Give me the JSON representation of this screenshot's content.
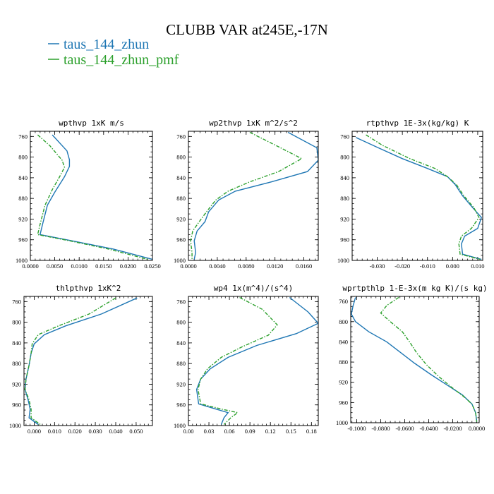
{
  "figure": {
    "title": "CLUBB VAR at245E,-17N",
    "legend": [
      {
        "name": "taus_144_zhun",
        "color": "#1f77b4",
        "dash": "solid"
      },
      {
        "name": "taus_144_zhun_pmf",
        "color": "#2ca02c",
        "dash": "dash-dot"
      }
    ]
  },
  "chart_data": [
    {
      "type": "line",
      "title": "wpthvp  1xK m/s",
      "xlim": [
        0,
        0.025
      ],
      "ylim": [
        1000,
        750
      ],
      "xticks": [
        0,
        0.005,
        0.01,
        0.015,
        0.02,
        0.025
      ],
      "xticklabels": [
        "0.0000",
        "0.0050",
        "0.0100",
        "0.0150",
        "0.0200",
        "0.0250"
      ],
      "yticks": [
        760,
        800,
        840,
        880,
        920,
        960,
        1000
      ],
      "yticklabels": [
        "760",
        "800",
        "840",
        "880",
        "920",
        "960",
        "1000"
      ],
      "series": [
        {
          "name": "taus_144_zhun",
          "color": "#1f77b4",
          "points": [
            [
              0.0045,
              757
            ],
            [
              0.0075,
              788
            ],
            [
              0.008,
              805
            ],
            [
              0.008,
              818
            ],
            [
              0.007,
              838
            ],
            [
              0.005,
              868
            ],
            [
              0.0035,
              893
            ],
            [
              0.0025,
              930
            ],
            [
              0.002,
              950
            ],
            [
              0.0085,
              962
            ],
            [
              0.017,
              978
            ],
            [
              0.025,
              998
            ]
          ]
        },
        {
          "name": "taus_144_zhun_pmf",
          "color": "#2ca02c",
          "points": [
            [
              0.0015,
              757
            ],
            [
              0.004,
              778
            ],
            [
              0.0065,
              806
            ],
            [
              0.007,
              820
            ],
            [
              0.006,
              838
            ],
            [
              0.0045,
              863
            ],
            [
              0.003,
              893
            ],
            [
              0.002,
              930
            ],
            [
              0.0015,
              950
            ],
            [
              0.008,
              962
            ],
            [
              0.016,
              978
            ],
            [
              0.024,
              998
            ]
          ]
        }
      ]
    },
    {
      "type": "line",
      "title": "wp2thvp  1xK m^2/s^2",
      "xlim": [
        0,
        0.018
      ],
      "ylim": [
        1000,
        750
      ],
      "xticks": [
        0,
        0.004,
        0.008,
        0.012,
        0.016
      ],
      "xticklabels": [
        "0.0000",
        "0.0040",
        "0.0080",
        "0.0120",
        "0.0160"
      ],
      "yticks": [
        760,
        800,
        840,
        880,
        920,
        960,
        1000
      ],
      "yticklabels": [
        "760",
        "800",
        "840",
        "880",
        "920",
        "960",
        "1000"
      ],
      "series": [
        {
          "name": "taus_144_zhun",
          "color": "#1f77b4",
          "points": [
            [
              0.0138,
              752
            ],
            [
              0.0178,
              782
            ],
            [
              0.018,
              806
            ],
            [
              0.0165,
              828
            ],
            [
              0.0115,
              848
            ],
            [
              0.0065,
              866
            ],
            [
              0.0042,
              883
            ],
            [
              0.0028,
              906
            ],
            [
              0.0023,
              925
            ],
            [
              0.0012,
              943
            ],
            [
              0.0008,
              962
            ],
            [
              0.001,
              985
            ],
            [
              0.0008,
              998
            ]
          ]
        },
        {
          "name": "taus_144_zhun_pmf",
          "color": "#2ca02c",
          "points": [
            [
              0.0085,
              752
            ],
            [
              0.0125,
              780
            ],
            [
              0.0157,
              803
            ],
            [
              0.0125,
              828
            ],
            [
              0.0085,
              848
            ],
            [
              0.0055,
              866
            ],
            [
              0.0038,
              883
            ],
            [
              0.0025,
              906
            ],
            [
              0.0015,
              925
            ],
            [
              0.0006,
              943
            ],
            [
              0.0003,
              962
            ],
            [
              0.0005,
              985
            ],
            [
              0.0005,
              998
            ]
          ]
        }
      ]
    },
    {
      "type": "line",
      "title": "rtpthvp  1E-3x(kg/kg) K",
      "xlim": [
        -0.04,
        0.012
      ],
      "ylim": [
        1000,
        750
      ],
      "xticks": [
        -0.03,
        -0.02,
        -0.01,
        0,
        0.01
      ],
      "xticklabels": [
        "-0.030",
        "-0.020",
        "-0.010",
        "0.000",
        "0.010"
      ],
      "yticks": [
        760,
        800,
        840,
        880,
        920,
        960,
        1000
      ],
      "yticklabels": [
        "760",
        "800",
        "840",
        "880",
        "920",
        "960",
        "1000"
      ],
      "series": [
        {
          "name": "taus_144_zhun",
          "color": "#1f77b4",
          "points": [
            [
              -0.0385,
              762
            ],
            [
              -0.03,
              781
            ],
            [
              -0.02,
              803
            ],
            [
              -0.01,
              822
            ],
            [
              -0.002,
              838
            ],
            [
              0.001,
              853
            ],
            [
              0.004,
              875
            ],
            [
              0.008,
              898
            ],
            [
              0.0115,
              917
            ],
            [
              0.01,
              938
            ],
            [
              0.0048,
              953
            ],
            [
              0.0035,
              968
            ],
            [
              0.004,
              988
            ],
            [
              0.0115,
              998
            ]
          ]
        },
        {
          "name": "taus_144_zhun_pmf",
          "color": "#2ca02c",
          "points": [
            [
              -0.0345,
              757
            ],
            [
              -0.028,
              777
            ],
            [
              -0.017,
              803
            ],
            [
              -0.007,
              822
            ],
            [
              -0.002,
              838
            ],
            [
              0.0015,
              853
            ],
            [
              0.0045,
              875
            ],
            [
              0.0085,
              898
            ],
            [
              0.0105,
              917
            ],
            [
              0.0075,
              938
            ],
            [
              0.0035,
              953
            ],
            [
              0.0025,
              968
            ],
            [
              0.003,
              988
            ],
            [
              0.011,
              998
            ]
          ]
        }
      ]
    },
    {
      "type": "line",
      "title": "thlpthvp  1xK^2",
      "xlim": [
        -0.005,
        0.058
      ],
      "ylim": [
        1000,
        750
      ],
      "xticks": [
        0,
        0.01,
        0.02,
        0.03,
        0.04,
        0.05
      ],
      "xticklabels": [
        "0.000",
        "0.010",
        "0.020",
        "0.030",
        "0.040",
        "0.050"
      ],
      "yticks": [
        760,
        800,
        840,
        880,
        920,
        960,
        1000
      ],
      "yticklabels": [
        "760",
        "800",
        "840",
        "880",
        "920",
        "960",
        "1000"
      ],
      "series": [
        {
          "name": "taus_144_zhun",
          "color": "#1f77b4",
          "points": [
            [
              0.0505,
              753
            ],
            [
              0.033,
              784
            ],
            [
              0.0155,
              807
            ],
            [
              0.005,
              824
            ],
            [
              0,
              842
            ],
            [
              -0.0015,
              860
            ],
            [
              -0.0025,
              883
            ],
            [
              -0.004,
              910
            ],
            [
              -0.0045,
              930
            ],
            [
              -0.003,
              950
            ],
            [
              -0.002,
              968
            ],
            [
              -0.0025,
              985
            ],
            [
              0.002,
              998
            ]
          ]
        },
        {
          "name": "taus_144_zhun_pmf",
          "color": "#2ca02c",
          "points": [
            [
              0.04,
              753
            ],
            [
              0.027,
              784
            ],
            [
              0.012,
              807
            ],
            [
              0.002,
              824
            ],
            [
              -0.001,
              842
            ],
            [
              -0.0015,
              860
            ],
            [
              -0.0025,
              883
            ],
            [
              -0.004,
              910
            ],
            [
              -0.0045,
              930
            ],
            [
              -0.0025,
              950
            ],
            [
              -0.0015,
              968
            ],
            [
              -0.0015,
              985
            ],
            [
              0.003,
              998
            ]
          ]
        }
      ]
    },
    {
      "type": "line",
      "title": "wp4  1x(m^4)/(s^4)",
      "xlim": [
        0,
        0.19
      ],
      "ylim": [
        1000,
        750
      ],
      "xticks": [
        0,
        0.03,
        0.06,
        0.09,
        0.12,
        0.15,
        0.18
      ],
      "xticklabels": [
        "0.00",
        "0.03",
        "0.06",
        "0.09",
        "0.12",
        "0.15",
        "0.18"
      ],
      "yticks": [
        760,
        800,
        840,
        880,
        920,
        960,
        1000
      ],
      "yticklabels": [
        "760",
        "800",
        "840",
        "880",
        "920",
        "960",
        "1000"
      ],
      "series": [
        {
          "name": "taus_144_zhun",
          "color": "#1f77b4",
          "points": [
            [
              0.148,
              752
            ],
            [
              0.175,
              780
            ],
            [
              0.19,
              802
            ],
            [
              0.158,
              822
            ],
            [
              0.1,
              845
            ],
            [
              0.058,
              868
            ],
            [
              0.032,
              890
            ],
            [
              0.018,
              910
            ],
            [
              0.012,
              930
            ],
            [
              0.015,
              958
            ],
            [
              0.04,
              968
            ],
            [
              0.058,
              975
            ],
            [
              0.052,
              985
            ],
            [
              0.048,
              998
            ]
          ]
        },
        {
          "name": "taus_144_zhun_pmf",
          "color": "#2ca02c",
          "points": [
            [
              0.075,
              752
            ],
            [
              0.108,
              775
            ],
            [
              0.13,
              805
            ],
            [
              0.117,
              825
            ],
            [
              0.078,
              848
            ],
            [
              0.048,
              868
            ],
            [
              0.028,
              890
            ],
            [
              0.018,
              910
            ],
            [
              0.014,
              930
            ],
            [
              0.018,
              958
            ],
            [
              0.048,
              968
            ],
            [
              0.072,
              975
            ],
            [
              0.062,
              985
            ],
            [
              0.052,
              998
            ]
          ]
        }
      ]
    },
    {
      "type": "line",
      "title": "wprtpthlp  1-E-3x(m kg K)/(s kg)",
      "xlim": [
        -0.105,
        0.002
      ],
      "ylim": [
        1000,
        750
      ],
      "xticks": [
        -0.1,
        -0.08,
        -0.06,
        -0.04,
        -0.02,
        0
      ],
      "xticklabels": [
        "-0.1000",
        "-0.0800",
        "-0.0600",
        "-0.0400",
        "-0.0200",
        "0.0000"
      ],
      "yticks": [
        760,
        800,
        840,
        880,
        920,
        960,
        1000
      ],
      "yticklabels": [
        "760",
        "800",
        "840",
        "880",
        "920",
        "960",
        "1000"
      ],
      "series": [
        {
          "name": "taus_144_zhun",
          "color": "#1f77b4",
          "points": [
            [
              -0.101,
              752
            ],
            [
              -0.103,
              768
            ],
            [
              -0.1045,
              785
            ],
            [
              -0.101,
              800
            ],
            [
              -0.09,
              820
            ],
            [
              -0.075,
              840
            ],
            [
              -0.064,
              860
            ],
            [
              -0.052,
              882
            ],
            [
              -0.038,
              905
            ],
            [
              -0.025,
              925
            ],
            [
              -0.012,
              945
            ],
            [
              -0.004,
              963
            ],
            [
              -0.001,
              980
            ],
            [
              0,
              998
            ]
          ]
        },
        {
          "name": "taus_144_zhun_pmf",
          "color": "#2ca02c",
          "points": [
            [
              -0.065,
              752
            ],
            [
              -0.075,
              768
            ],
            [
              -0.08,
              783
            ],
            [
              -0.072,
              800
            ],
            [
              -0.062,
              820
            ],
            [
              -0.056,
              840
            ],
            [
              -0.05,
              862
            ],
            [
              -0.042,
              885
            ],
            [
              -0.032,
              908
            ],
            [
              -0.022,
              928
            ],
            [
              -0.011,
              948
            ],
            [
              -0.004,
              963
            ],
            [
              -0.001,
              980
            ],
            [
              0,
              998
            ]
          ]
        }
      ]
    }
  ]
}
